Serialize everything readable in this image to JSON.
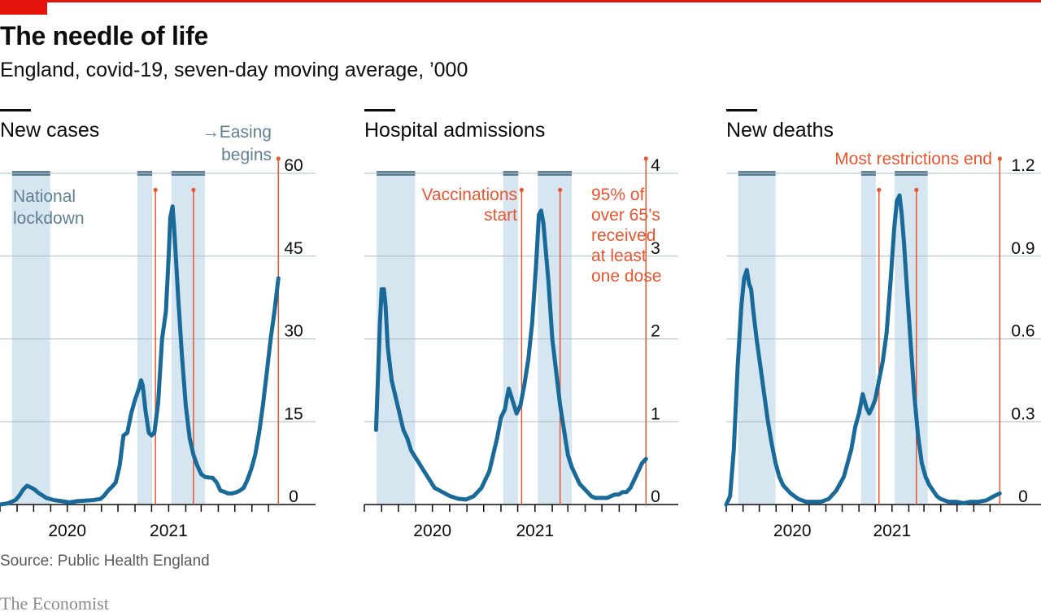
{
  "title": "The needle of life",
  "subtitle": "England, covid-19, seven-day moving average, ’000",
  "source": "Source: Public Health England",
  "brand": "The Economist",
  "colors": {
    "line": "#1a6a99",
    "shade": "#d6e6f0",
    "lockdown_bar": "#5f7f93",
    "event": "#e8552f",
    "grid": "#a9bccb",
    "axis": "#0c0c0c",
    "accent": "#e3120b",
    "annotation_blue": "#5f7f93"
  },
  "chart_data": [
    {
      "type": "line",
      "title": "New cases",
      "x_ticks": [
        "2020",
        "2021"
      ],
      "ylim": [
        0,
        60
      ],
      "y_ticks": [
        0,
        15,
        30,
        45,
        60
      ],
      "y_tick_labels": [
        "0",
        "15",
        "30",
        "45",
        "60"
      ],
      "annotations": [
        "National lockdown",
        "→Easing",
        "begins"
      ],
      "x": [
        "2020-03-01",
        "2020-03-15",
        "2020-03-29",
        "2020-04-05",
        "2020-04-12",
        "2020-04-19",
        "2020-04-26",
        "2020-05-03",
        "2020-05-10",
        "2020-05-24",
        "2020-06-07",
        "2020-06-21",
        "2020-07-05",
        "2020-07-19",
        "2020-08-02",
        "2020-08-16",
        "2020-08-30",
        "2020-09-06",
        "2020-09-13",
        "2020-09-20",
        "2020-09-27",
        "2020-10-04",
        "2020-10-11",
        "2020-10-18",
        "2020-10-25",
        "2020-11-01",
        "2020-11-08",
        "2020-11-12",
        "2020-11-15",
        "2020-11-20",
        "2020-11-26",
        "2020-12-01",
        "2020-12-06",
        "2020-12-13",
        "2020-12-20",
        "2020-12-27",
        "2021-01-01",
        "2021-01-04",
        "2021-01-08",
        "2021-01-11",
        "2021-01-18",
        "2021-01-25",
        "2021-02-01",
        "2021-02-08",
        "2021-02-15",
        "2021-02-22",
        "2021-03-01",
        "2021-03-08",
        "2021-03-15",
        "2021-03-22",
        "2021-03-29",
        "2021-04-05",
        "2021-04-12",
        "2021-04-19",
        "2021-04-26",
        "2021-05-03",
        "2021-05-10",
        "2021-05-17",
        "2021-05-24",
        "2021-05-31",
        "2021-06-07",
        "2021-06-14",
        "2021-06-21",
        "2021-06-28",
        "2021-07-05",
        "2021-07-12",
        "2021-07-19"
      ],
      "series": [
        {
          "values": [
            0,
            0.2,
            0.8,
            1.6,
            2.7,
            3.4,
            3.1,
            2.7,
            2.1,
            1.2,
            0.8,
            0.6,
            0.4,
            0.6,
            0.7,
            0.8,
            1.0,
            1.6,
            2.5,
            3.2,
            4.0,
            7.0,
            12.5,
            13.0,
            16.5,
            19.0,
            21.0,
            22.5,
            21.5,
            17.0,
            13.0,
            12.5,
            13.0,
            18.5,
            30.0,
            35.0,
            45.0,
            52.0,
            54.0,
            50.0,
            38.0,
            27.0,
            18.0,
            12.0,
            9.0,
            7.0,
            5.5,
            5.0,
            4.9,
            4.8,
            4.0,
            2.5,
            2.3,
            2.0,
            2.0,
            2.2,
            2.5,
            3.0,
            4.5,
            6.5,
            9.0,
            13.0,
            18.0,
            24.0,
            30.0,
            35.0,
            41.0
          ]
        }
      ],
      "shaded_periods": [
        [
          "2020-03-23",
          "2020-05-31"
        ],
        [
          "2020-11-05",
          "2020-12-02"
        ],
        [
          "2021-01-06",
          "2021-03-08"
        ]
      ],
      "event_lines": [
        "2020-12-08",
        "2021-02-15",
        "2021-07-19"
      ]
    },
    {
      "type": "line",
      "title": "Hospital admissions",
      "x_ticks": [
        "2020",
        "2021"
      ],
      "ylim": [
        0,
        4
      ],
      "y_ticks": [
        0,
        1,
        2,
        3,
        4
      ],
      "y_tick_labels": [
        "0",
        "1",
        "2",
        "3",
        "4"
      ],
      "annotations": [
        "Vaccinations",
        "start",
        "95% of",
        "over 65’s",
        "received",
        "at least",
        "one dose"
      ],
      "x": [
        "2020-03-22",
        "2020-03-29",
        "2020-04-01",
        "2020-04-05",
        "2020-04-08",
        "2020-04-12",
        "2020-04-19",
        "2020-04-26",
        "2020-05-03",
        "2020-05-10",
        "2020-05-17",
        "2020-05-24",
        "2020-06-07",
        "2020-06-21",
        "2020-07-05",
        "2020-07-19",
        "2020-08-02",
        "2020-08-16",
        "2020-08-30",
        "2020-09-13",
        "2020-09-27",
        "2020-10-11",
        "2020-10-18",
        "2020-10-25",
        "2020-11-01",
        "2020-11-08",
        "2020-11-12",
        "2020-11-15",
        "2020-11-22",
        "2020-11-29",
        "2020-12-06",
        "2020-12-13",
        "2020-12-20",
        "2020-12-27",
        "2021-01-03",
        "2021-01-08",
        "2021-01-12",
        "2021-01-16",
        "2021-01-20",
        "2021-01-25",
        "2021-02-01",
        "2021-02-08",
        "2021-02-15",
        "2021-02-22",
        "2021-03-01",
        "2021-03-08",
        "2021-03-15",
        "2021-03-22",
        "2021-03-29",
        "2021-04-05",
        "2021-04-12",
        "2021-04-19",
        "2021-04-26",
        "2021-05-03",
        "2021-05-10",
        "2021-05-17",
        "2021-05-24",
        "2021-05-31",
        "2021-06-07",
        "2021-06-14",
        "2021-06-21",
        "2021-06-28",
        "2021-07-05",
        "2021-07-12",
        "2021-07-19"
      ],
      "series": [
        {
          "values": [
            0.9,
            2.2,
            2.6,
            2.6,
            2.4,
            1.9,
            1.5,
            1.3,
            1.1,
            0.9,
            0.8,
            0.65,
            0.5,
            0.35,
            0.2,
            0.15,
            0.1,
            0.07,
            0.06,
            0.1,
            0.2,
            0.4,
            0.6,
            0.8,
            1.05,
            1.15,
            1.3,
            1.4,
            1.25,
            1.1,
            1.2,
            1.45,
            1.75,
            2.2,
            2.9,
            3.5,
            3.55,
            3.4,
            3.1,
            2.7,
            2.0,
            1.6,
            1.2,
            0.9,
            0.6,
            0.45,
            0.35,
            0.25,
            0.2,
            0.15,
            0.1,
            0.08,
            0.08,
            0.08,
            0.08,
            0.1,
            0.12,
            0.12,
            0.15,
            0.15,
            0.2,
            0.3,
            0.4,
            0.5,
            0.55
          ]
        }
      ],
      "shaded_periods": [
        [
          "2020-03-23",
          "2020-05-31"
        ],
        [
          "2020-11-05",
          "2020-12-02"
        ],
        [
          "2021-01-06",
          "2021-03-08"
        ]
      ],
      "event_lines": [
        "2020-12-08",
        "2021-02-15",
        "2021-07-19"
      ]
    },
    {
      "type": "line",
      "title": "New deaths",
      "x_ticks": [
        "2020",
        "2021"
      ],
      "ylim": [
        0,
        1.2
      ],
      "y_ticks": [
        0,
        0.3,
        0.6,
        0.9,
        1.2
      ],
      "y_tick_labels": [
        "0",
        "0.3",
        "0.6",
        "0.9",
        "1.2"
      ],
      "annotations": [
        "Most restrictions end"
      ],
      "x": [
        "2020-03-01",
        "2020-03-08",
        "2020-03-15",
        "2020-03-22",
        "2020-03-29",
        "2020-04-03",
        "2020-04-08",
        "2020-04-12",
        "2020-04-16",
        "2020-04-20",
        "2020-04-26",
        "2020-05-03",
        "2020-05-10",
        "2020-05-17",
        "2020-05-24",
        "2020-05-31",
        "2020-06-07",
        "2020-06-14",
        "2020-06-28",
        "2020-07-12",
        "2020-07-26",
        "2020-08-09",
        "2020-08-23",
        "2020-09-06",
        "2020-09-20",
        "2020-10-04",
        "2020-10-18",
        "2020-10-25",
        "2020-11-01",
        "2020-11-08",
        "2020-11-15",
        "2020-11-20",
        "2020-11-25",
        "2020-12-01",
        "2020-12-08",
        "2020-12-15",
        "2020-12-22",
        "2020-12-29",
        "2021-01-05",
        "2021-01-10",
        "2021-01-15",
        "2021-01-19",
        "2021-01-23",
        "2021-01-28",
        "2021-02-04",
        "2021-02-11",
        "2021-02-18",
        "2021-02-25",
        "2021-03-04",
        "2021-03-11",
        "2021-03-18",
        "2021-03-25",
        "2021-04-01",
        "2021-04-15",
        "2021-04-29",
        "2021-05-13",
        "2021-05-27",
        "2021-06-10",
        "2021-06-24",
        "2021-07-08",
        "2021-07-19"
      ],
      "series": [
        {
          "values": [
            0,
            0.03,
            0.2,
            0.5,
            0.72,
            0.82,
            0.85,
            0.8,
            0.78,
            0.7,
            0.6,
            0.5,
            0.4,
            0.3,
            0.22,
            0.15,
            0.1,
            0.07,
            0.04,
            0.02,
            0.01,
            0.01,
            0.01,
            0.02,
            0.05,
            0.1,
            0.2,
            0.28,
            0.33,
            0.4,
            0.35,
            0.33,
            0.35,
            0.38,
            0.45,
            0.52,
            0.62,
            0.8,
            1.0,
            1.1,
            1.12,
            1.05,
            0.95,
            0.8,
            0.6,
            0.4,
            0.25,
            0.15,
            0.1,
            0.07,
            0.05,
            0.03,
            0.02,
            0.01,
            0.01,
            0.005,
            0.01,
            0.01,
            0.015,
            0.03,
            0.04
          ]
        }
      ],
      "shaded_periods": [
        [
          "2020-03-23",
          "2020-05-31"
        ],
        [
          "2020-11-05",
          "2020-12-02"
        ],
        [
          "2021-01-06",
          "2021-03-08"
        ]
      ],
      "event_lines": [
        "2020-12-08",
        "2021-02-15",
        "2021-07-19"
      ]
    }
  ]
}
